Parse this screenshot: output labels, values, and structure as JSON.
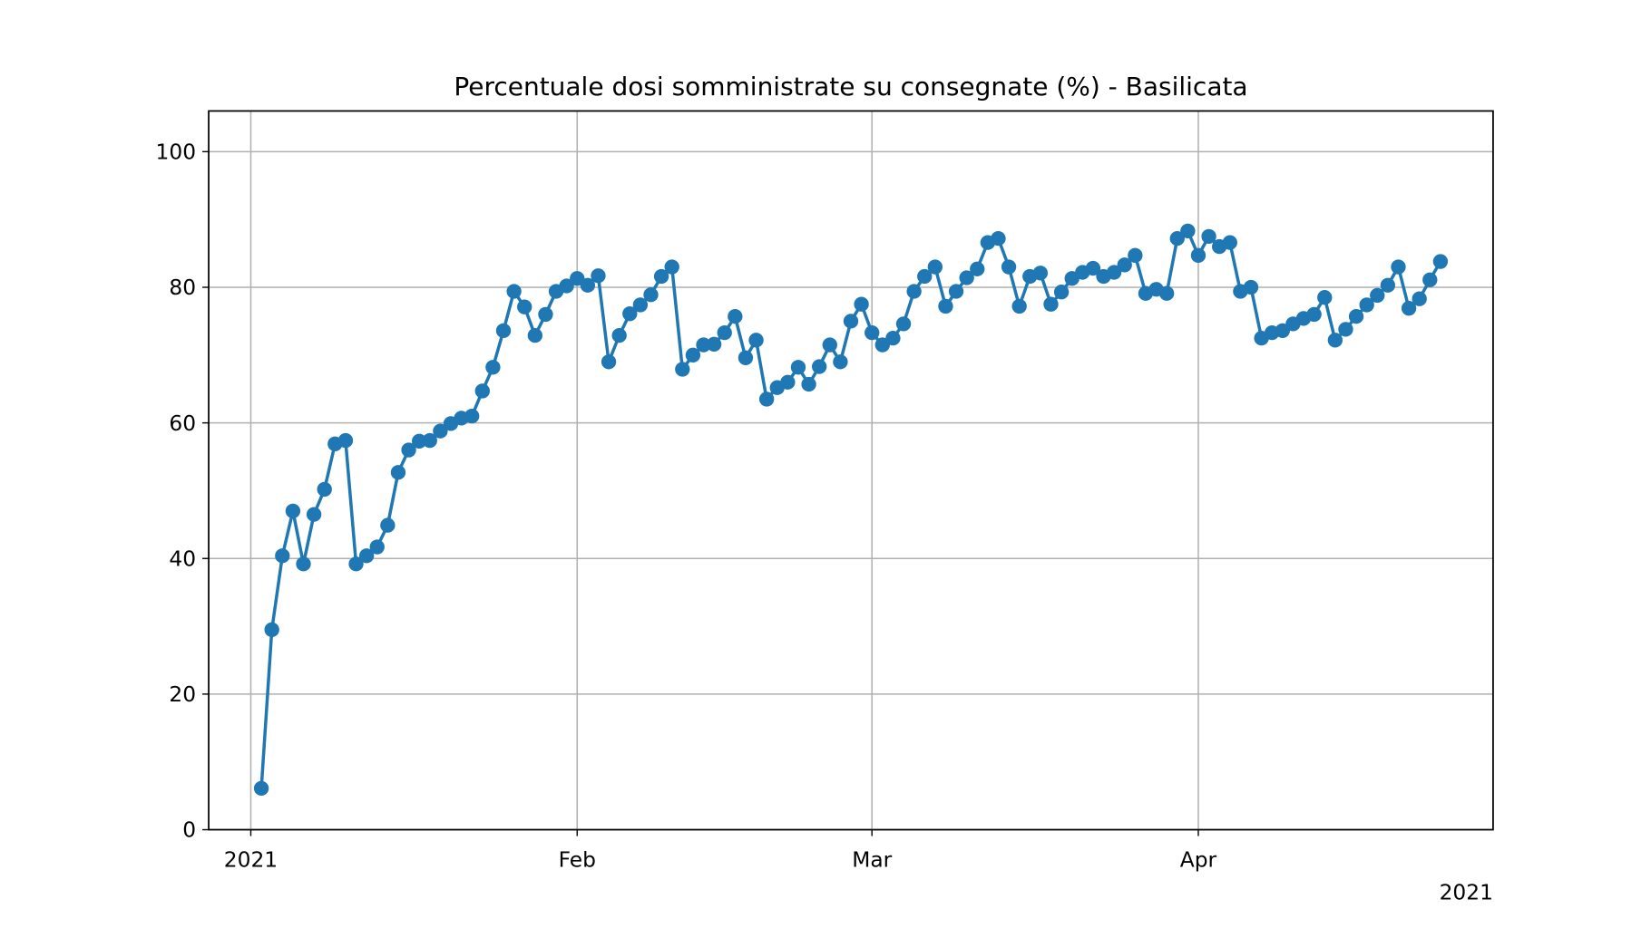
{
  "chart_data": {
    "type": "line",
    "title": "Percentuale dosi somministrate su consegnate (%) - Basilicata",
    "x_offset_label": "2021",
    "color": "#1f77b4",
    "grid": true,
    "markers": true,
    "x": [
      "2021-01-02",
      "2021-01-03",
      "2021-01-04",
      "2021-01-05",
      "2021-01-06",
      "2021-01-07",
      "2021-01-08",
      "2021-01-09",
      "2021-01-10",
      "2021-01-11",
      "2021-01-12",
      "2021-01-13",
      "2021-01-14",
      "2021-01-15",
      "2021-01-16",
      "2021-01-17",
      "2021-01-18",
      "2021-01-19",
      "2021-01-20",
      "2021-01-21",
      "2021-01-22",
      "2021-01-23",
      "2021-01-24",
      "2021-01-25",
      "2021-01-26",
      "2021-01-27",
      "2021-01-28",
      "2021-01-29",
      "2021-01-30",
      "2021-01-31",
      "2021-02-01",
      "2021-02-02",
      "2021-02-03",
      "2021-02-04",
      "2021-02-05",
      "2021-02-06",
      "2021-02-07",
      "2021-02-08",
      "2021-02-09",
      "2021-02-10",
      "2021-02-11",
      "2021-02-12",
      "2021-02-13",
      "2021-02-14",
      "2021-02-15",
      "2021-02-16",
      "2021-02-17",
      "2021-02-18",
      "2021-02-19",
      "2021-02-20",
      "2021-02-21",
      "2021-02-22",
      "2021-02-23",
      "2021-02-24",
      "2021-02-25",
      "2021-02-26",
      "2021-02-27",
      "2021-02-28",
      "2021-03-01",
      "2021-03-02",
      "2021-03-03",
      "2021-03-04",
      "2021-03-05",
      "2021-03-06",
      "2021-03-07",
      "2021-03-08",
      "2021-03-09",
      "2021-03-10",
      "2021-03-11",
      "2021-03-12",
      "2021-03-13",
      "2021-03-14",
      "2021-03-15",
      "2021-03-16",
      "2021-03-17",
      "2021-03-18",
      "2021-03-19",
      "2021-03-20",
      "2021-03-21",
      "2021-03-22",
      "2021-03-23",
      "2021-03-24",
      "2021-03-25",
      "2021-03-26",
      "2021-03-27",
      "2021-03-28",
      "2021-03-29",
      "2021-03-30",
      "2021-03-31",
      "2021-04-01",
      "2021-04-02",
      "2021-04-03",
      "2021-04-04",
      "2021-04-05",
      "2021-04-06",
      "2021-04-07",
      "2021-04-08",
      "2021-04-09",
      "2021-04-10",
      "2021-04-11",
      "2021-04-12",
      "2021-04-13",
      "2021-04-14",
      "2021-04-15",
      "2021-04-16",
      "2021-04-17",
      "2021-04-18",
      "2021-04-19",
      "2021-04-20",
      "2021-04-21",
      "2021-04-22",
      "2021-04-23",
      "2021-04-24"
    ],
    "values": [
      6.1,
      29.5,
      40.4,
      47.0,
      39.2,
      46.5,
      50.2,
      56.9,
      57.4,
      39.2,
      40.4,
      41.7,
      44.9,
      52.7,
      56.0,
      57.3,
      57.4,
      58.8,
      59.9,
      60.7,
      61.0,
      64.7,
      68.2,
      73.6,
      79.4,
      77.1,
      72.9,
      76.0,
      79.4,
      80.2,
      81.3,
      80.3,
      81.7,
      69.0,
      72.9,
      76.1,
      77.4,
      78.9,
      81.6,
      83.0,
      67.9,
      70.0,
      71.5,
      71.6,
      73.3,
      75.7,
      69.6,
      72.2,
      63.5,
      65.2,
      66.0,
      68.2,
      65.7,
      68.3,
      71.5,
      69.0,
      75.0,
      77.5,
      73.3,
      71.5,
      72.5,
      74.6,
      79.4,
      81.6,
      83.0,
      77.2,
      79.4,
      81.4,
      82.7,
      86.6,
      87.2,
      83.0,
      77.2,
      81.6,
      82.1,
      77.5,
      79.3,
      81.3,
      82.2,
      82.8,
      81.6,
      82.2,
      83.3,
      84.7,
      79.1,
      79.7,
      79.1,
      87.2,
      88.3,
      84.7,
      87.5,
      86.0,
      86.6,
      79.4,
      80.0,
      72.5,
      73.3,
      73.6,
      74.6,
      75.4,
      76.0,
      78.5,
      72.2,
      73.8,
      75.7,
      77.4,
      78.8,
      80.3,
      83.0,
      76.9,
      78.3,
      81.1,
      83.8
    ],
    "xlim": [
      "2020-12-28",
      "2021-04-29"
    ],
    "xticks": [
      {
        "value": "2021-01-01",
        "label": "2021"
      },
      {
        "value": "2021-02-01",
        "label": "Feb"
      },
      {
        "value": "2021-03-01",
        "label": "Mar"
      },
      {
        "value": "2021-04-01",
        "label": "Apr"
      }
    ],
    "ylim": [
      0,
      106
    ],
    "yticks": [
      0,
      20,
      40,
      60,
      80,
      100
    ]
  }
}
